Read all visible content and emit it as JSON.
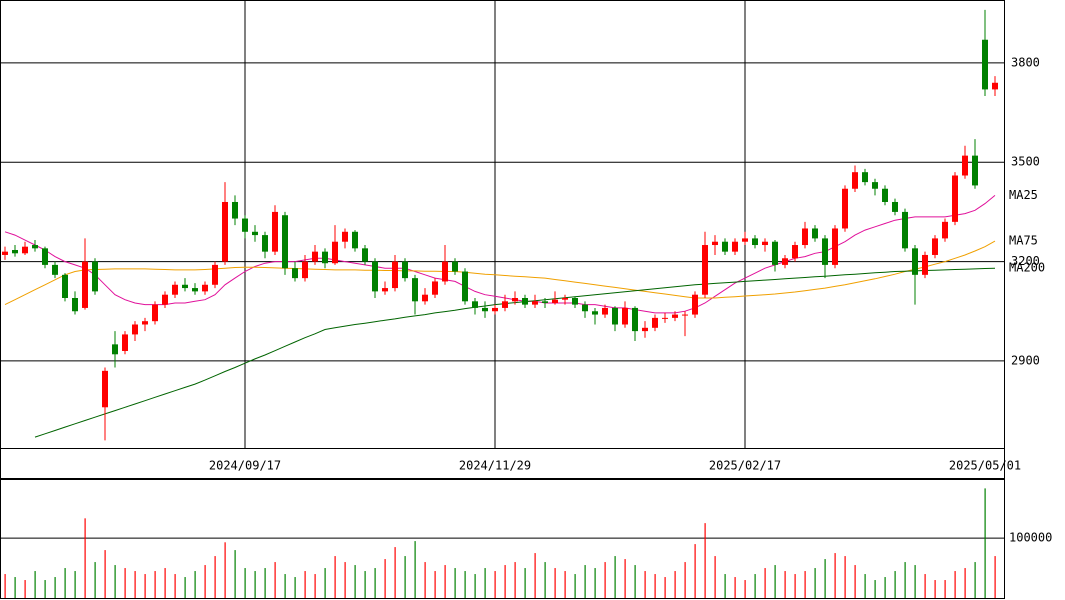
{
  "chart_data": {
    "type": "candlestick",
    "categories": [
      null,
      null,
      null,
      null,
      null,
      null,
      null,
      null,
      null,
      null,
      null,
      null,
      null,
      null,
      null,
      null,
      null,
      null,
      null,
      null,
      null,
      null,
      null,
      null,
      "2024/09/17",
      null,
      null,
      null,
      null,
      null,
      null,
      null,
      null,
      null,
      null,
      null,
      null,
      null,
      null,
      null,
      null,
      null,
      null,
      null,
      null,
      null,
      null,
      null,
      null,
      "2024/11/29",
      null,
      null,
      null,
      null,
      null,
      null,
      null,
      null,
      null,
      null,
      null,
      null,
      null,
      null,
      null,
      null,
      null,
      null,
      null,
      null,
      null,
      null,
      null,
      null,
      "2025/02/17",
      null,
      null,
      null,
      null,
      null,
      null,
      null,
      null,
      null,
      null,
      null,
      null,
      null,
      null,
      null,
      null,
      null,
      null,
      null,
      null,
      null,
      null,
      null,
      "2025/05/01",
      null
    ],
    "ohlc": [
      [
        3220,
        3245,
        3205,
        3230
      ],
      [
        3235,
        3250,
        3215,
        3225
      ],
      [
        3225,
        3260,
        3220,
        3245
      ],
      [
        3250,
        3265,
        3230,
        3240
      ],
      [
        3240,
        3245,
        3180,
        3190
      ],
      [
        3190,
        3200,
        3150,
        3160
      ],
      [
        3160,
        3165,
        3080,
        3090
      ],
      [
        3090,
        3110,
        3040,
        3050
      ],
      [
        3060,
        3270,
        3055,
        3200
      ],
      [
        3200,
        3210,
        3100,
        3110
      ],
      [
        2760,
        2880,
        2660,
        2870
      ],
      [
        2950,
        2990,
        2880,
        2920
      ],
      [
        2930,
        2990,
        2920,
        2980
      ],
      [
        2980,
        3020,
        2960,
        3010
      ],
      [
        3010,
        3030,
        2990,
        3020
      ],
      [
        3020,
        3080,
        3010,
        3070
      ],
      [
        3070,
        3110,
        3060,
        3100
      ],
      [
        3100,
        3140,
        3090,
        3130
      ],
      [
        3130,
        3150,
        3110,
        3120
      ],
      [
        3120,
        3135,
        3100,
        3110
      ],
      [
        3110,
        3140,
        3100,
        3130
      ],
      [
        3130,
        3200,
        3120,
        3190
      ],
      [
        3200,
        3440,
        3190,
        3380
      ],
      [
        3380,
        3400,
        3310,
        3330
      ],
      [
        3330,
        3340,
        3270,
        3290
      ],
      [
        3290,
        3310,
        3260,
        3280
      ],
      [
        3280,
        3290,
        3210,
        3230
      ],
      [
        3230,
        3370,
        3220,
        3350
      ],
      [
        3340,
        3350,
        3160,
        3180
      ],
      [
        3180,
        3200,
        3140,
        3150
      ],
      [
        3150,
        3220,
        3140,
        3200
      ],
      [
        3200,
        3250,
        3190,
        3230
      ],
      [
        3230,
        3240,
        3180,
        3195
      ],
      [
        3195,
        3310,
        3190,
        3260
      ],
      [
        3260,
        3300,
        3240,
        3290
      ],
      [
        3290,
        3295,
        3230,
        3240
      ],
      [
        3240,
        3250,
        3190,
        3200
      ],
      [
        3200,
        3210,
        3090,
        3110
      ],
      [
        3110,
        3140,
        3100,
        3120
      ],
      [
        3120,
        3220,
        3110,
        3200
      ],
      [
        3200,
        3210,
        3140,
        3150
      ],
      [
        3150,
        3160,
        3040,
        3080
      ],
      [
        3080,
        3120,
        3070,
        3100
      ],
      [
        3100,
        3150,
        3090,
        3140
      ],
      [
        3140,
        3250,
        3130,
        3200
      ],
      [
        3200,
        3210,
        3160,
        3170
      ],
      [
        3170,
        3180,
        3070,
        3080
      ],
      [
        3080,
        3090,
        3040,
        3060
      ],
      [
        3060,
        3080,
        3030,
        3050
      ],
      [
        3050,
        3070,
        3040,
        3060
      ],
      [
        3060,
        3100,
        3050,
        3080
      ],
      [
        3080,
        3110,
        3070,
        3090
      ],
      [
        3090,
        3100,
        3060,
        3070
      ],
      [
        3070,
        3100,
        3060,
        3080
      ],
      [
        3080,
        3090,
        3060,
        3075
      ],
      [
        3075,
        3110,
        3070,
        3085
      ],
      [
        3085,
        3100,
        3070,
        3090
      ],
      [
        3090,
        3095,
        3060,
        3070
      ],
      [
        3070,
        3080,
        3030,
        3050
      ],
      [
        3050,
        3060,
        3010,
        3040
      ],
      [
        3040,
        3070,
        3030,
        3060
      ],
      [
        3060,
        3065,
        2990,
        3010
      ],
      [
        3010,
        3080,
        3000,
        3060
      ],
      [
        3060,
        3065,
        2960,
        2990
      ],
      [
        2990,
        3020,
        2970,
        3000
      ],
      [
        3000,
        3040,
        2990,
        3030
      ],
      [
        3030,
        3045,
        3015,
        3030
      ],
      [
        3030,
        3050,
        3020,
        3040
      ],
      [
        3040,
        3050,
        2975,
        3040
      ],
      [
        3040,
        3110,
        3030,
        3100
      ],
      [
        3100,
        3290,
        3090,
        3250
      ],
      [
        3250,
        3280,
        3220,
        3260
      ],
      [
        3260,
        3270,
        3220,
        3230
      ],
      [
        3230,
        3270,
        3220,
        3260
      ],
      [
        3260,
        3290,
        3250,
        3270
      ],
      [
        3270,
        3280,
        3240,
        3250
      ],
      [
        3250,
        3270,
        3230,
        3260
      ],
      [
        3260,
        3265,
        3170,
        3190
      ],
      [
        3190,
        3220,
        3180,
        3210
      ],
      [
        3210,
        3260,
        3200,
        3250
      ],
      [
        3250,
        3320,
        3240,
        3300
      ],
      [
        3300,
        3310,
        3260,
        3270
      ],
      [
        3270,
        3280,
        3150,
        3190
      ],
      [
        3190,
        3310,
        3180,
        3300
      ],
      [
        3300,
        3430,
        3290,
        3420
      ],
      [
        3420,
        3490,
        3410,
        3470
      ],
      [
        3470,
        3480,
        3430,
        3440
      ],
      [
        3440,
        3450,
        3400,
        3420
      ],
      [
        3420,
        3430,
        3370,
        3380
      ],
      [
        3380,
        3390,
        3340,
        3350
      ],
      [
        3350,
        3360,
        3230,
        3240
      ],
      [
        3240,
        3250,
        3070,
        3160
      ],
      [
        3160,
        3230,
        3150,
        3220
      ],
      [
        3220,
        3280,
        3210,
        3270
      ],
      [
        3270,
        3330,
        3260,
        3320
      ],
      [
        3320,
        3470,
        3310,
        3460
      ],
      [
        3460,
        3550,
        3450,
        3520
      ],
      [
        3520,
        3570,
        3420,
        3430
      ],
      [
        3870,
        3960,
        3700,
        3720
      ],
      [
        3720,
        3760,
        3700,
        3740
      ]
    ],
    "up_color": "#ff0000",
    "down_color": "#008000",
    "ylim": [
      2637,
      3990
    ],
    "yticks": [
      2900,
      3200,
      3500,
      3800
    ],
    "grid": true,
    "moving_averages": [
      {
        "name": "MA25",
        "color": "#e0109a",
        "values": [
          3290,
          3280,
          3265,
          3250,
          3235,
          3215,
          3200,
          3190,
          3180,
          3160,
          3130,
          3100,
          3085,
          3075,
          3070,
          3070,
          3070,
          3075,
          3075,
          3080,
          3085,
          3100,
          3130,
          3150,
          3170,
          3185,
          3195,
          3200,
          3200,
          3200,
          3205,
          3210,
          3210,
          3205,
          3200,
          3195,
          3190,
          3185,
          3180,
          3180,
          3180,
          3170,
          3160,
          3150,
          3145,
          3140,
          3125,
          3110,
          3100,
          3095,
          3090,
          3085,
          3080,
          3080,
          3075,
          3075,
          3075,
          3075,
          3070,
          3070,
          3065,
          3060,
          3060,
          3055,
          3050,
          3045,
          3045,
          3045,
          3050,
          3060,
          3075,
          3095,
          3115,
          3135,
          3150,
          3165,
          3180,
          3190,
          3200,
          3210,
          3215,
          3225,
          3230,
          3245,
          3260,
          3280,
          3295,
          3305,
          3315,
          3325,
          3330,
          3335,
          3335,
          3335,
          3335,
          3340,
          3345,
          3355,
          3375,
          3400
        ]
      },
      {
        "name": "MA75",
        "color": "#f0a000",
        "values": [
          3070,
          3085,
          3100,
          3115,
          3130,
          3145,
          3160,
          3170,
          3175,
          3176,
          3177,
          3178,
          3178,
          3178,
          3178,
          3177,
          3176,
          3175,
          3175,
          3175,
          3176,
          3178,
          3180,
          3182,
          3183,
          3183,
          3182,
          3181,
          3180,
          3179,
          3178,
          3177,
          3176,
          3175,
          3175,
          3175,
          3174,
          3174,
          3173,
          3173,
          3172,
          3172,
          3171,
          3171,
          3170,
          3170,
          3168,
          3165,
          3162,
          3160,
          3158,
          3156,
          3154,
          3152,
          3150,
          3146,
          3142,
          3138,
          3134,
          3130,
          3126,
          3122,
          3118,
          3114,
          3110,
          3106,
          3102,
          3098,
          3094,
          3090,
          3090,
          3090,
          3092,
          3094,
          3096,
          3098,
          3100,
          3102,
          3105,
          3108,
          3112,
          3116,
          3120,
          3125,
          3130,
          3136,
          3142,
          3148,
          3155,
          3162,
          3170,
          3177,
          3184,
          3192,
          3200,
          3210,
          3220,
          3232,
          3245,
          3262
        ]
      },
      {
        "name": "MA200",
        "color": "#006400",
        "values": [
          null,
          null,
          null,
          2670,
          2680,
          2690,
          2700,
          2710,
          2720,
          2730,
          2740,
          2750,
          2760,
          2770,
          2780,
          2790,
          2800,
          2810,
          2820,
          2830,
          2842,
          2855,
          2868,
          2880,
          2893,
          2906,
          2918,
          2931,
          2944,
          2957,
          2970,
          2982,
          2995,
          3000,
          3005,
          3010,
          3014,
          3018,
          3023,
          3027,
          3032,
          3036,
          3040,
          3045,
          3049,
          3053,
          3058,
          3062,
          3066,
          3070,
          3073,
          3076,
          3079,
          3082,
          3085,
          3088,
          3091,
          3094,
          3097,
          3100,
          3103,
          3106,
          3109,
          3112,
          3115,
          3118,
          3121,
          3124,
          3127,
          3130,
          3132,
          3134,
          3136,
          3138,
          3140,
          3142,
          3144,
          3146,
          3148,
          3150,
          3152,
          3154,
          3156,
          3158,
          3160,
          3162,
          3164,
          3166,
          3168,
          3170,
          3171,
          3172,
          3173,
          3174,
          3175,
          3176,
          3177,
          3178,
          3179,
          3180
        ]
      }
    ],
    "volume": {
      "values": [
        40000,
        35000,
        30000,
        45000,
        30000,
        35000,
        50000,
        45000,
        133000,
        60000,
        80000,
        55000,
        50000,
        45000,
        40000,
        45000,
        50000,
        40000,
        35000,
        45000,
        55000,
        70000,
        93000,
        80000,
        50000,
        45000,
        50000,
        60000,
        40000,
        35000,
        45000,
        40000,
        50000,
        70000,
        60000,
        55000,
        45000,
        50000,
        65000,
        85000,
        70000,
        95000,
        60000,
        45000,
        55000,
        50000,
        45000,
        40000,
        50000,
        45000,
        55000,
        60000,
        50000,
        75000,
        60000,
        50000,
        45000,
        40000,
        55000,
        50000,
        60000,
        70000,
        65000,
        55000,
        45000,
        40000,
        35000,
        45000,
        60000,
        90000,
        125000,
        70000,
        40000,
        35000,
        30000,
        40000,
        50000,
        55000,
        45000,
        40000,
        45000,
        50000,
        65000,
        75000,
        70000,
        55000,
        40000,
        30000,
        35000,
        45000,
        60000,
        55000,
        40000,
        30000,
        30000,
        45000,
        50000,
        60000,
        183000,
        70000
      ],
      "vlim": [
        0,
        197000
      ],
      "vticks": [
        100000
      ]
    }
  }
}
